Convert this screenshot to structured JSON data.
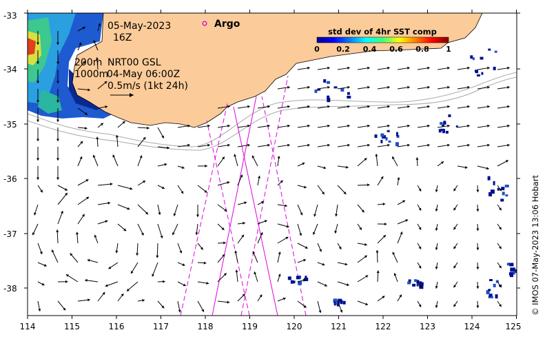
{
  "map": {
    "lon_ticks": [
      "114",
      "115",
      "116",
      "117",
      "118",
      "119",
      "120",
      "121",
      "122",
      "123",
      "124",
      "125"
    ],
    "lat_ticks": [
      "-33",
      "-34",
      "-35",
      "-36",
      "-37",
      "-38"
    ],
    "date": "05-May-2023",
    "hour": "16Z",
    "isobath_200": "200m",
    "isobath_1000": "1000m",
    "altimetry_label": "NRT00 GSL",
    "altimetry_time": "04-May 06:00Z",
    "scale_label": "0.5m/s (1kt 24h)",
    "argo_label": "Argo",
    "colorbar": {
      "title": "std dev of 4hr SST comp",
      "ticks": [
        "0",
        "0.2",
        "0.4",
        "0.6",
        "0.8",
        "1"
      ]
    },
    "credit": "© IMOS 07-May-2023 13:06 Hobart",
    "colors": {
      "land": "#fbcb99",
      "track": "#e000e0",
      "isobath": "#a9a9a9",
      "high_value": "#00008b"
    }
  }
}
